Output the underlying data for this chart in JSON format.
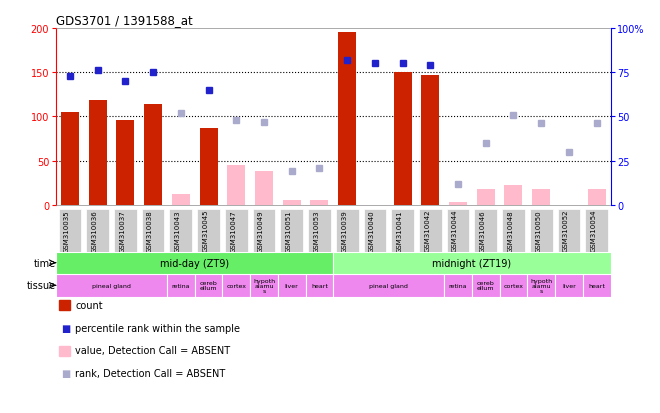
{
  "title": "GDS3701 / 1391588_at",
  "samples": [
    "GSM310035",
    "GSM310036",
    "GSM310037",
    "GSM310038",
    "GSM310043",
    "GSM310045",
    "GSM310047",
    "GSM310049",
    "GSM310051",
    "GSM310053",
    "GSM310039",
    "GSM310040",
    "GSM310041",
    "GSM310042",
    "GSM310044",
    "GSM310046",
    "GSM310048",
    "GSM310050",
    "GSM310052",
    "GSM310054"
  ],
  "count": [
    105,
    118,
    96,
    114,
    null,
    87,
    null,
    null,
    null,
    null,
    195,
    null,
    150,
    147,
    null,
    null,
    null,
    null,
    null,
    null
  ],
  "percentile_rank": [
    73,
    76,
    70,
    75,
    null,
    65,
    null,
    null,
    null,
    null,
    82,
    80,
    80,
    79,
    null,
    null,
    null,
    null,
    null,
    null
  ],
  "absent_value": [
    null,
    null,
    null,
    null,
    12,
    null,
    45,
    38,
    5,
    5,
    null,
    null,
    null,
    null,
    3,
    18,
    22,
    18,
    null,
    18
  ],
  "absent_rank": [
    null,
    null,
    null,
    null,
    52,
    null,
    48,
    47,
    19,
    21,
    null,
    null,
    null,
    null,
    12,
    35,
    51,
    46,
    30,
    46
  ],
  "ylim_left": [
    0,
    200
  ],
  "ylim_right": [
    0,
    100
  ],
  "bar_color_red": "#cc2200",
  "bar_color_pink": "#ffbbcc",
  "dot_color_blue": "#2222cc",
  "dot_color_lblue": "#aaaacc",
  "bg_color": "#ffffff",
  "time_groups": [
    {
      "label": "mid-day (ZT9)",
      "start": 0,
      "end": 10,
      "color": "#66ee66"
    },
    {
      "label": "midnight (ZT19)",
      "start": 10,
      "end": 20,
      "color": "#99ff99"
    }
  ],
  "tissue_groups": [
    {
      "label": "pineal gland",
      "start": 0,
      "end": 4,
      "color": "#ee88ee"
    },
    {
      "label": "retina",
      "start": 4,
      "end": 5,
      "color": "#ee88ee"
    },
    {
      "label": "cerebellum",
      "start": 5,
      "end": 6,
      "color": "#ee88ee"
    },
    {
      "label": "cortex",
      "start": 6,
      "end": 7,
      "color": "#ee88ee"
    },
    {
      "label": "hypothalamus",
      "start": 7,
      "end": 8,
      "color": "#ee88ee"
    },
    {
      "label": "liver",
      "start": 8,
      "end": 9,
      "color": "#ee88ee"
    },
    {
      "label": "heart",
      "start": 9,
      "end": 10,
      "color": "#ee88ee"
    },
    {
      "label": "pineal gland",
      "start": 10,
      "end": 14,
      "color": "#ee88ee"
    },
    {
      "label": "retina",
      "start": 14,
      "end": 15,
      "color": "#ee88ee"
    },
    {
      "label": "cerebellum",
      "start": 15,
      "end": 16,
      "color": "#ee88ee"
    },
    {
      "label": "cortex",
      "start": 16,
      "end": 17,
      "color": "#ee88ee"
    },
    {
      "label": "hypothalamus",
      "start": 17,
      "end": 18,
      "color": "#ee88ee"
    },
    {
      "label": "liver",
      "start": 18,
      "end": 19,
      "color": "#ee88ee"
    },
    {
      "label": "heart",
      "start": 19,
      "end": 20,
      "color": "#ee88ee"
    }
  ],
  "legend": [
    {
      "color": "#cc2200",
      "is_rect": true,
      "label": "count"
    },
    {
      "color": "#2222cc",
      "is_rect": false,
      "label": "percentile rank within the sample"
    },
    {
      "color": "#ffbbcc",
      "is_rect": true,
      "label": "value, Detection Call = ABSENT"
    },
    {
      "color": "#aaaacc",
      "is_rect": false,
      "label": "rank, Detection Call = ABSENT"
    }
  ]
}
